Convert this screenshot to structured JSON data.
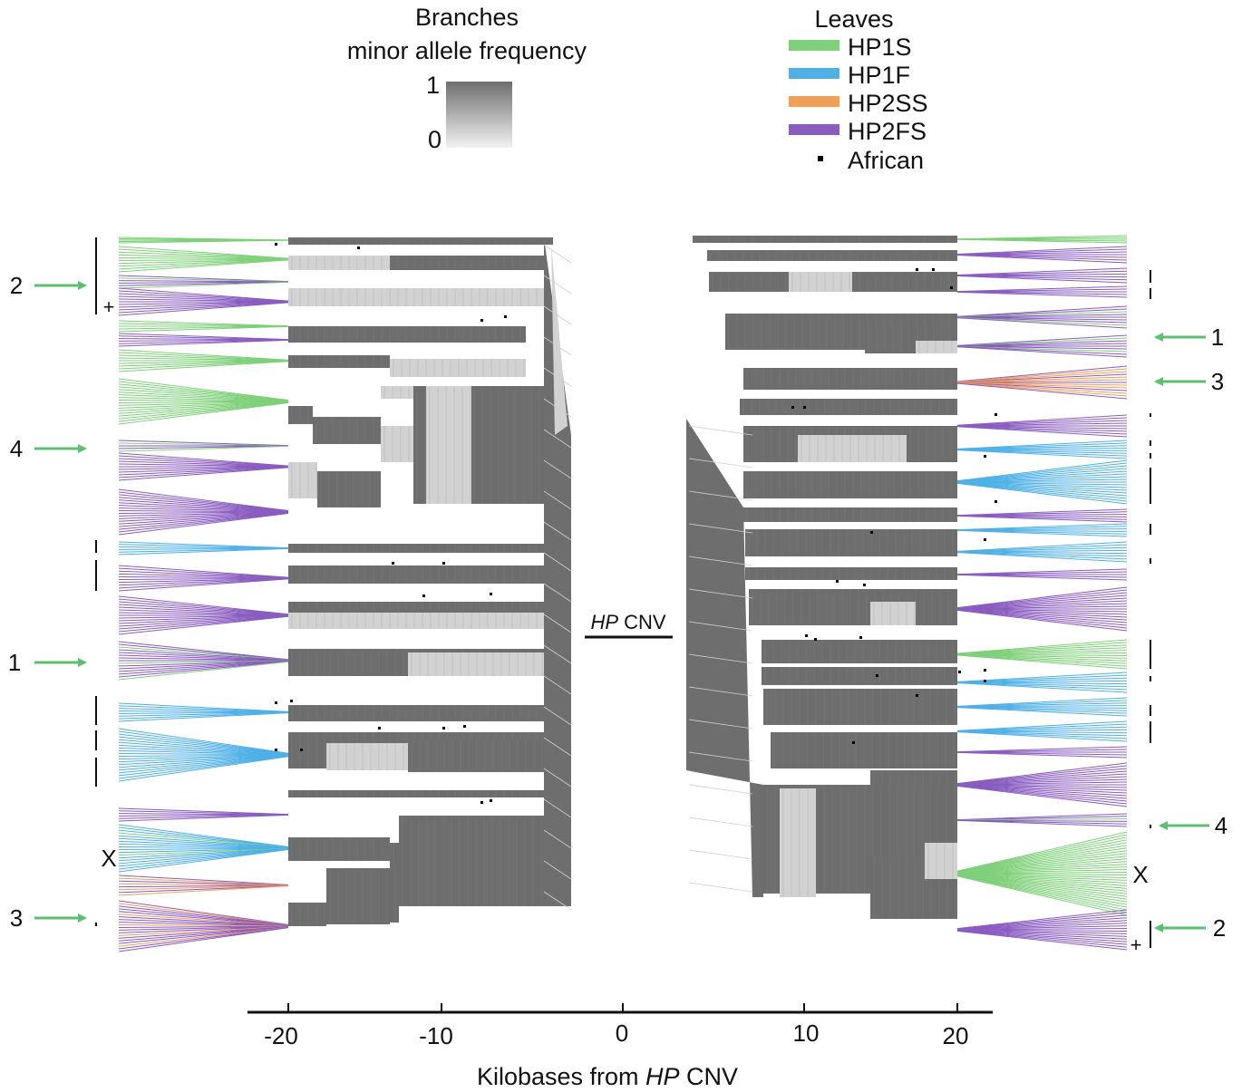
{
  "legend_branches": {
    "title_line1": "Branches",
    "title_line2": "minor allele frequency",
    "max_label": "1",
    "min_label": "0"
  },
  "legend_leaves": {
    "title": "Leaves",
    "items": [
      {
        "label": "HP1S",
        "color": "#7fd07a"
      },
      {
        "label": "HP1F",
        "color": "#4fb0e6"
      },
      {
        "label": "HP2SS",
        "color": "#f0a05a"
      },
      {
        "label": "HP2FS",
        "color": "#8a5cc0"
      },
      {
        "label": "African",
        "color": "#000000"
      }
    ]
  },
  "center_label": {
    "italic": "HP",
    "rest": " CNV"
  },
  "x_axis": {
    "ticks": [
      "-20",
      "-10",
      "0",
      "10",
      "20"
    ],
    "title_pre": "Kilobases from ",
    "title_italic": "HP",
    "title_post": " CNV"
  },
  "left_markers": {
    "n2": "2",
    "n4": "4",
    "n1": "1",
    "n3": "3",
    "x": "X",
    "plus": "+"
  },
  "right_markers": {
    "n1": "1",
    "n3": "3",
    "n4": "4",
    "n2": "2",
    "x": "X",
    "plus": "+"
  },
  "colors": {
    "HP1S": "#7fd07a",
    "HP1F": "#4fb0e6",
    "HP2SS": "#f0a05a",
    "HP2FS": "#8a5cc0",
    "branch_dark": "#6e6e6e",
    "branch_light": "#d2d2d2",
    "arrow": "#5cc070"
  }
}
